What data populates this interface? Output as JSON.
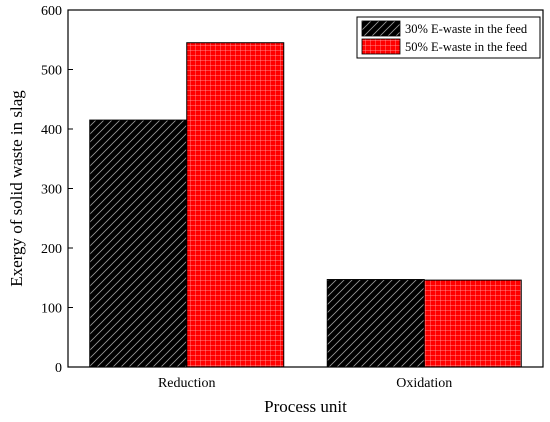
{
  "chart_data": {
    "type": "bar",
    "title": "",
    "xlabel": "Process unit",
    "ylabel": "Exergy of solid waste in slag",
    "categories": [
      "Reduction",
      "Oxidation"
    ],
    "ylim": [
      0,
      600
    ],
    "yticks": [
      0,
      100,
      200,
      300,
      400,
      500,
      600
    ],
    "grid": false,
    "legend": "top-right",
    "series": [
      {
        "name": "30% E-waste in the feed",
        "values": [
          415,
          147
        ],
        "color": "#000000",
        "pattern": "diagonal-hatch"
      },
      {
        "name": "50% E-waste in the feed",
        "values": [
          545,
          146
        ],
        "color": "#ff0000",
        "pattern": "grid-hatch"
      }
    ]
  }
}
